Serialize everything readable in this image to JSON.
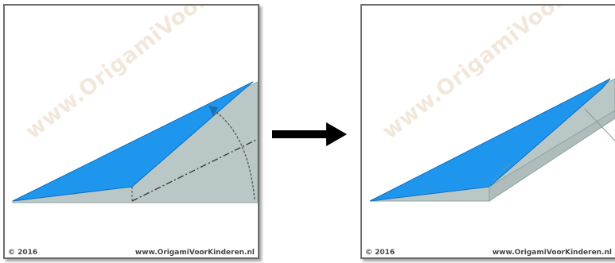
{
  "panels": {
    "step": {
      "copyright": "© 2016",
      "website": "www.OrigamiVoorKinderen.nl",
      "watermark": "www.OrigamiVoorKinderen.nl"
    },
    "result": {
      "copyright": "© 2016",
      "website": "www.OrigamiVoorKinderen.nl",
      "watermark": "www.OrigamiVoorKinderen.nl"
    }
  },
  "colors": {
    "paper_front": "#1e96ee",
    "paper_back": "#b9c7c6",
    "border": "#6b6b6b",
    "arrow": "#000000"
  },
  "icons": {
    "between_panels": "right-arrow-icon"
  }
}
